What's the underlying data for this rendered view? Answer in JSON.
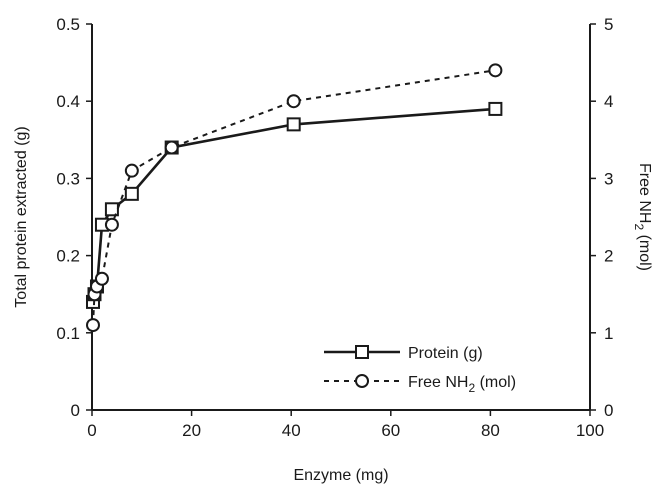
{
  "chart_data": {
    "type": "line",
    "xlabel": "Enzyme (mg)",
    "ylabel_left": "Total protein extracted (g)",
    "ylabel_right": "Free NH2 (mol)",
    "ylabel_right_parts": {
      "main": "Free NH",
      "sub": "2",
      "tail": " (mol)"
    },
    "xlim": [
      0,
      100
    ],
    "ylim_left": [
      0,
      0.5
    ],
    "ylim_right": [
      0,
      5
    ],
    "x_ticks": [
      0,
      20,
      40,
      60,
      80,
      100
    ],
    "x_tick_labels": [
      "0",
      "20",
      "40",
      "60",
      "80",
      "100"
    ],
    "y_left_ticks": [
      0,
      0.1,
      0.2,
      0.3,
      0.4,
      0.5
    ],
    "y_left_tick_labels": [
      "0",
      "0.1",
      "0.2",
      "0.3",
      "0.4",
      "0.5"
    ],
    "y_right_ticks": [
      0,
      1,
      2,
      3,
      4,
      5
    ],
    "y_right_tick_labels": [
      "0",
      "1",
      "2",
      "3",
      "4",
      "5"
    ],
    "grid": false,
    "legend_placement": "bottom-right",
    "series": [
      {
        "name": "Protein (g)",
        "legend": {
          "main": "Protein (g)"
        },
        "axis": "left",
        "style": "solid",
        "marker": "square",
        "color": "#1a1a1a",
        "x": [
          0.2,
          0.5,
          1,
          2,
          4,
          8,
          16,
          40.5,
          81
        ],
        "y": [
          0.14,
          0.15,
          0.16,
          0.24,
          0.26,
          0.28,
          0.34,
          0.37,
          0.39
        ]
      },
      {
        "name": "Free NH2 (mol)",
        "legend": {
          "main": "Free NH",
          "sub": "2",
          "tail": " (mol)"
        },
        "axis": "right",
        "style": "dashed",
        "marker": "circle",
        "color": "#1a1a1a",
        "x": [
          0.2,
          0.5,
          1,
          2,
          4,
          8,
          16,
          40.5,
          81
        ],
        "y": [
          1.1,
          1.5,
          1.6,
          1.7,
          2.4,
          3.1,
          3.4,
          4.0,
          4.4
        ]
      }
    ]
  }
}
